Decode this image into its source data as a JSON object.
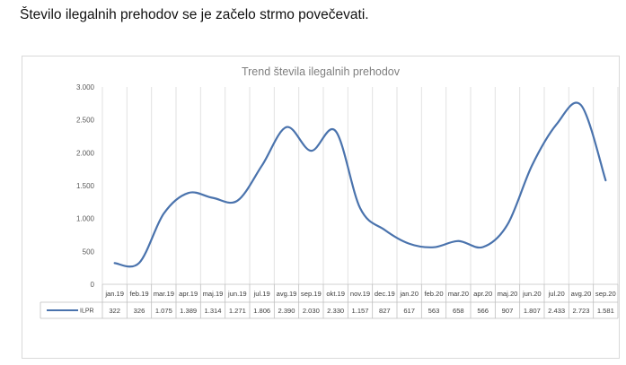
{
  "document": {
    "heading": "Število ilegalnih prehodov se je začelo strmo povečevati."
  },
  "chart_data": {
    "type": "line",
    "title": "Trend števila ilegalnih prehodov",
    "categories": [
      "jan.19",
      "feb.19",
      "mar.19",
      "apr.19",
      "maj.19",
      "jun.19",
      "jul.19",
      "avg.19",
      "sep.19",
      "okt.19",
      "nov.19",
      "dec.19",
      "jan.20",
      "feb.20",
      "mar.20",
      "apr.20",
      "maj.20",
      "jun.20",
      "jul.20",
      "avg.20",
      "sep.20"
    ],
    "series": [
      {
        "name": "ILPR",
        "color": "#4a73ad",
        "values": [
          322,
          326,
          1075,
          1389,
          1314,
          1271,
          1806,
          2390,
          2030,
          2330,
          1157,
          827,
          617,
          563,
          658,
          566,
          907,
          1807,
          2433,
          2723,
          1581
        ],
        "labels": [
          "322",
          "326",
          "1.075",
          "1.389",
          "1.314",
          "1.271",
          "1.806",
          "2.390",
          "2.030",
          "2.330",
          "1.157",
          "827",
          "617",
          "563",
          "658",
          "566",
          "907",
          "1.807",
          "2.433",
          "2.723",
          "1.581"
        ]
      }
    ],
    "y_ticks": [
      0,
      500,
      1000,
      1500,
      2000,
      2500,
      3000
    ],
    "y_tick_labels": [
      "0",
      "500",
      "1.000",
      "1.500",
      "2.000",
      "2.500",
      "3.000"
    ],
    "ylim": [
      0,
      3000
    ],
    "grid": "vertical",
    "legend": "data table"
  }
}
